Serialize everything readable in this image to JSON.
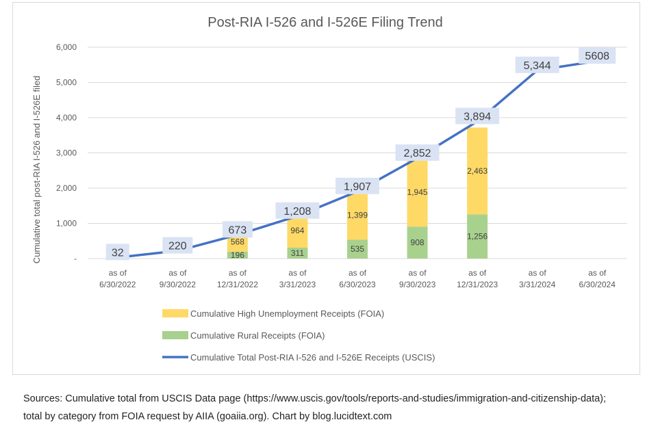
{
  "chart_data": {
    "type": "bar+line",
    "title": "Post-RIA I-526 and I-526E Filing Trend",
    "xlabel": "",
    "ylabel": "Cumulative total post-RIA I-526 and I-526E filed",
    "ylim": [
      0,
      6000
    ],
    "yticks": [
      0,
      1000,
      2000,
      3000,
      4000,
      5000,
      6000
    ],
    "ytick_labels": [
      "-",
      "1,000",
      "2,000",
      "3,000",
      "4,000",
      "5,000",
      "6,000"
    ],
    "grid": true,
    "legend_position": "bottom",
    "categories": [
      [
        "as of",
        "6/30/2022"
      ],
      [
        "as of",
        "9/30/2022"
      ],
      [
        "as of",
        "12/31/2022"
      ],
      [
        "as of",
        "3/31/2023"
      ],
      [
        "as of",
        "6/30/2023"
      ],
      [
        "as of",
        "9/30/2023"
      ],
      [
        "as of",
        "12/31/2023"
      ],
      [
        "as of",
        "3/31/2024"
      ],
      [
        "as of",
        "6/30/2024"
      ]
    ],
    "series": [
      {
        "name": "Cumulative Rural Receipts (FOIA)",
        "kind": "stacked-bar",
        "color": "#a9d18e",
        "values": [
          null,
          null,
          196,
          311,
          535,
          908,
          1256,
          null,
          null
        ],
        "labels": [
          null,
          null,
          "196",
          "311",
          "535",
          "908",
          "1,256",
          null,
          null
        ]
      },
      {
        "name": "Cumulative High Unemployment Receipts (FOIA)",
        "kind": "stacked-bar",
        "color": "#ffd966",
        "values": [
          null,
          null,
          568,
          964,
          1399,
          1945,
          2463,
          null,
          null
        ],
        "labels": [
          null,
          null,
          "568",
          "964",
          "1,399",
          "1,945",
          "2,463",
          null,
          null
        ]
      },
      {
        "name": "Cumulative Total Post-RIA I-526 and I-526E Receipts (USCIS)",
        "kind": "line",
        "color": "#4472c4",
        "values": [
          32,
          220,
          673,
          1208,
          1907,
          2852,
          3894,
          5344,
          5608
        ],
        "labels": [
          "32",
          "220",
          "673",
          "1,208",
          "1,907",
          "2,852",
          "3,894",
          "5,344",
          "5608"
        ]
      }
    ],
    "legend_order": [
      1,
      0,
      2
    ]
  },
  "sources": "Sources: Cumulative total from USCIS Data page (https://www.uscis.gov/tools/reports-and-studies/immigration-and-citizenship-data); total by category from FOIA request by AIIA (goaiia.org). Chart by blog.lucidtext.com"
}
